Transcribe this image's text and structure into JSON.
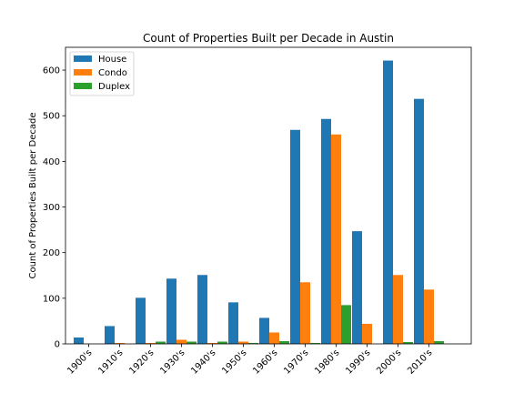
{
  "chart_data": {
    "type": "bar",
    "title": "Count of Properties Built per Decade in Austin",
    "xlabel": "",
    "ylabel": "Count of Properties Built per Decade",
    "ylim": [
      0,
      650
    ],
    "yticks": [
      0,
      100,
      200,
      300,
      400,
      500,
      600
    ],
    "grid": false,
    "legend_position": "top-left",
    "categories": [
      "1900's",
      "1910's",
      "1920's",
      "1930's",
      "1940's",
      "1950's",
      "1960's",
      "1970's",
      "1980's",
      "1990's",
      "2000's",
      "2010's"
    ],
    "series": [
      {
        "name": "House",
        "color": "#1f77b4",
        "values": [
          14,
          39,
          101,
          143,
          151,
          91,
          57,
          469,
          493,
          247,
          621,
          537
        ]
      },
      {
        "name": "Condo",
        "color": "#ff7f0e",
        "values": [
          0,
          2,
          2,
          9,
          2,
          5,
          25,
          135,
          459,
          44,
          151,
          119
        ]
      },
      {
        "name": "Duplex",
        "color": "#2ca02c",
        "values": [
          0,
          0,
          5,
          5,
          5,
          2,
          6,
          2,
          85,
          0,
          4,
          6
        ]
      }
    ]
  }
}
